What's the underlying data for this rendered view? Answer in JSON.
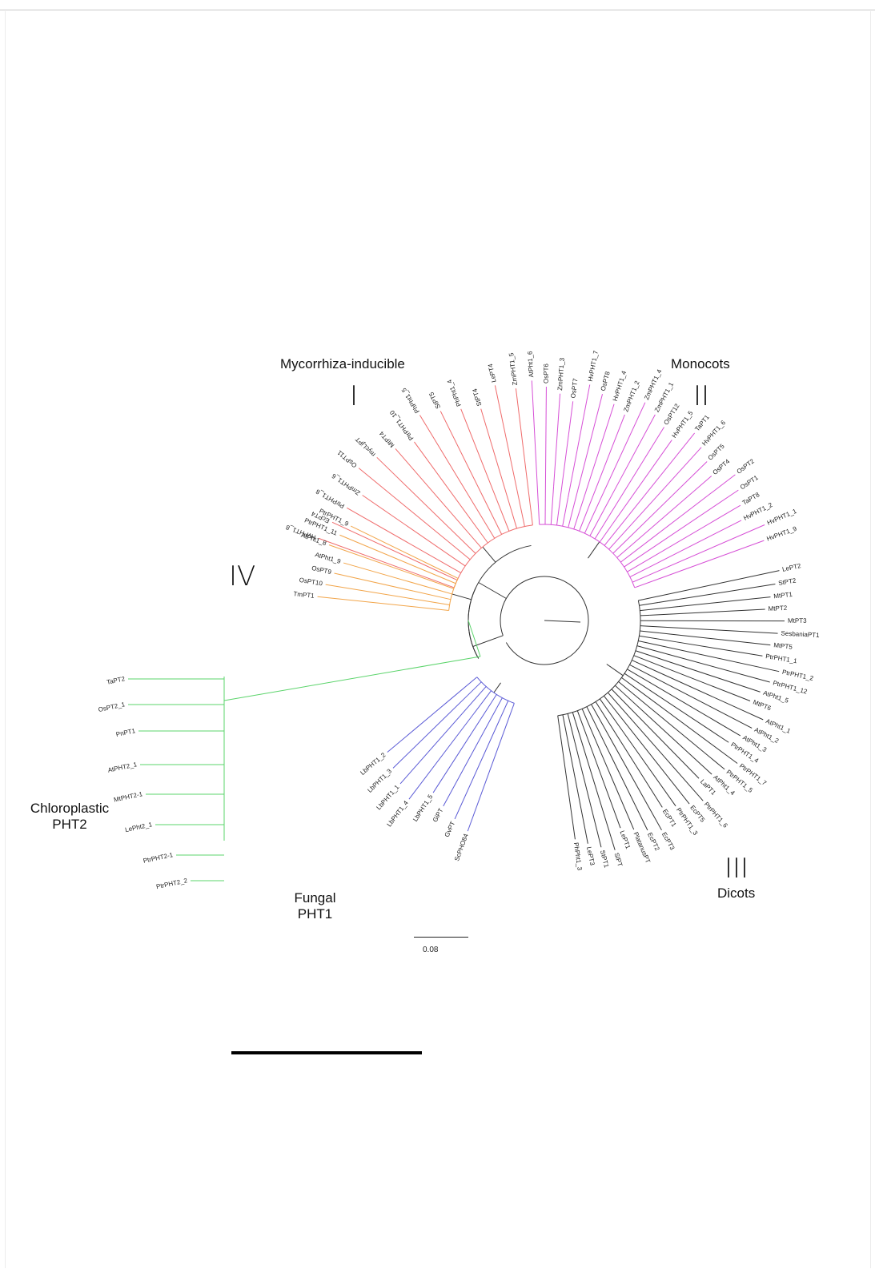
{
  "clades": {
    "I": {
      "title": "Mycorrhiza-inducible",
      "numeral": "I",
      "color": "#ef6b6b",
      "leaves": [
        "HvPHT1_8",
        "EcPT4",
        "PtrPHT1_8",
        "ZmPHT1_6",
        "OsPT11",
        "mycLjPT",
        "MtPT4",
        "PtrPHT1_10",
        "PhPht1_5",
        "StPT5",
        "PhPht1_4",
        "StPT4",
        "LePT4",
        "ZmPHT1_5"
      ]
    },
    "II": {
      "title": "Monocots",
      "numeral": "II",
      "color": "#d64fd6",
      "leaves": [
        "AtPht1_6",
        "OsPT6",
        "ZmPHT1_3",
        "OsPT7",
        "HvPHT1_7",
        "OsPT8",
        "HvPHT1_4",
        "ZmPHT1_2",
        "ZmPHT1_4",
        "ZmPHT1_1",
        "OsPT12",
        "HvPHT1_5",
        "TaPT1",
        "HvPHT1_6",
        "OsPT5",
        "OsPT4",
        "OsPT2",
        "OsPT1",
        "TaPT8",
        "HvPHT1_2",
        "HvPHT1_1",
        "HvPHT1_9"
      ]
    },
    "III": {
      "title": "Dicots",
      "numeral": "III",
      "color": "#333333",
      "leaves": [
        "LePT2",
        "StPT2",
        "MtPT1",
        "MtPT2",
        "MtPT3",
        "SesbaniaPT1",
        "MtPT5",
        "PtrPHT1_1",
        "PtrPHT1_2",
        "PtrPHT1_12",
        "AtPht1_5",
        "MtPT6",
        "AtPht1_1",
        "AtPht1_2",
        "AtPht1_3",
        "PtrPHT1_4",
        "PtrPHT1_7",
        "PtrPHT1_5",
        "AtPht1_4",
        "LaPT1",
        "PtrPHT1_6",
        "EcPT5",
        "PtrPHT1_3",
        "EcPT1",
        "EcPT3",
        "EcPT2",
        "PlatanusPT",
        "LePT1",
        "SlPT",
        "StPT1",
        "LePT3",
        "PhPht1_3"
      ]
    },
    "IV": {
      "title": "",
      "numeral": "IV",
      "color": "#f2a54a",
      "leaves": [
        "TmPT1",
        "OsPT10",
        "OsPT9",
        "AtPht1_9",
        "AtPht1_8",
        "PtrPHT1_11",
        "PtrPHT1_9"
      ]
    },
    "fungal": {
      "title_line1": "Fungal",
      "title_line2": "PHT1",
      "color": "#5b5bd6",
      "leaves": [
        "ScPHO84",
        "GvPT",
        "GiPT",
        "LbPHT1_5",
        "LbPHT1_4",
        "LbPHT1_1",
        "LbPHT1_3",
        "LbPHT1_2"
      ]
    },
    "chloroplastic": {
      "title_line1": "Chloroplastic",
      "title_line2": "PHT2",
      "color": "#5bd46b",
      "leaves": [
        "TaPT2",
        "OsPT2_1",
        "PnPT1",
        "AtPHT2_1",
        "MtPHT2-1",
        "LePht2_1",
        "PtrPHT2-1",
        "PtrPHT2_2"
      ]
    }
  },
  "scale_bar": {
    "label": "0.08",
    "value": 0.08
  }
}
